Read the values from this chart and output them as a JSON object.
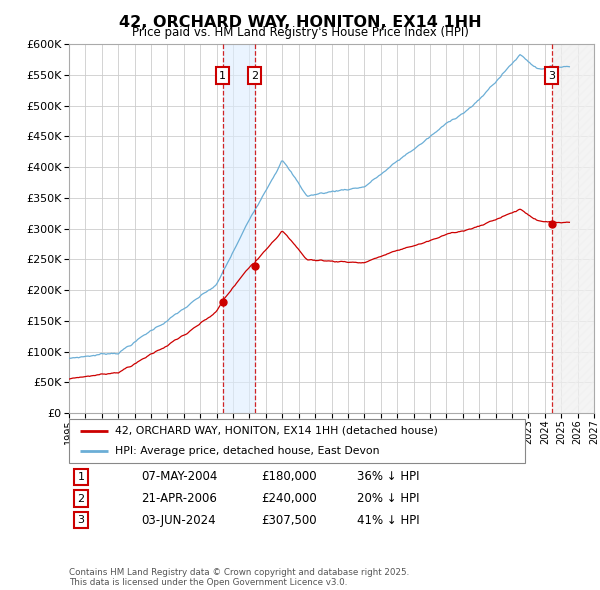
{
  "title": "42, ORCHARD WAY, HONITON, EX14 1HH",
  "subtitle": "Price paid vs. HM Land Registry's House Price Index (HPI)",
  "sales": [
    {
      "num": 1,
      "date": "07-MAY-2004",
      "price": 180000,
      "hpi_diff": "36% ↓ HPI",
      "x_year": 2004.36
    },
    {
      "num": 2,
      "date": "21-APR-2006",
      "price": 240000,
      "hpi_diff": "20% ↓ HPI",
      "x_year": 2006.31
    },
    {
      "num": 3,
      "date": "03-JUN-2024",
      "price": 307500,
      "hpi_diff": "41% ↓ HPI",
      "x_year": 2024.42
    }
  ],
  "xmin": 1995,
  "xmax": 2027,
  "ymin": 0,
  "ymax": 600000,
  "yticks": [
    0,
    50000,
    100000,
    150000,
    200000,
    250000,
    300000,
    350000,
    400000,
    450000,
    500000,
    550000,
    600000
  ],
  "red_line_label": "42, ORCHARD WAY, HONITON, EX14 1HH (detached house)",
  "blue_line_label": "HPI: Average price, detached house, East Devon",
  "footer": "Contains HM Land Registry data © Crown copyright and database right 2025.\nThis data is licensed under the Open Government Licence v3.0.",
  "red_color": "#cc0000",
  "blue_color": "#6baed6",
  "grid_color": "#cccccc",
  "background_color": "#ffffff",
  "shade_color": "#ddeeff",
  "hatch_color": "#dddddd"
}
